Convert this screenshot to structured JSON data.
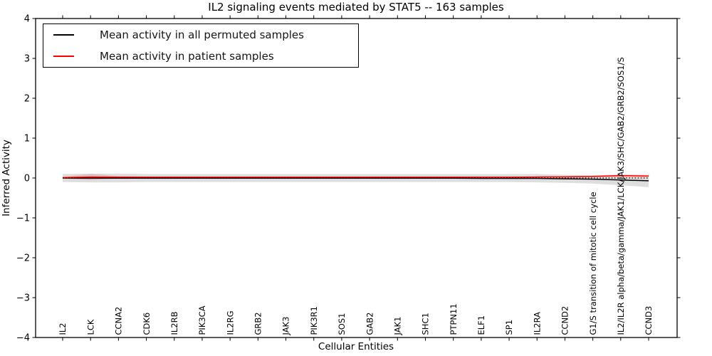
{
  "figure": {
    "title": "IL2 signaling events mediated by STAT5 -- 163 samples"
  },
  "legend": {
    "items": [
      {
        "label": "Mean activity in all permuted samples",
        "color": "#000000"
      },
      {
        "label": "Mean activity in patient samples",
        "color": "#ff0000"
      }
    ]
  },
  "chart_data": {
    "type": "line",
    "title": "IL2 signaling events mediated by STAT5 -- 163 samples",
    "xlabel": "Cellular Entities",
    "ylabel": "Inferred Activity",
    "ylim": [
      -4,
      4
    ],
    "ytick_values": [
      4,
      3,
      2,
      1,
      0,
      -1,
      -2,
      -3,
      -4
    ],
    "ytick_labels": [
      "4",
      "3",
      "2",
      "1",
      "0",
      "−1",
      "−2",
      "−3",
      "−4"
    ],
    "grid": false,
    "legend_position": "upper-left",
    "x_tick_rotation": 90,
    "categories": [
      "IL2",
      "LCK",
      "CCNA2",
      "CDK6",
      "IL2RB",
      "PIK3CA",
      "IL2RG",
      "GRB2",
      "JAK3",
      "PIK3R1",
      "SOS1",
      "GAB2",
      "JAK1",
      "SHC1",
      "PTPN11",
      "ELF1",
      "SP1",
      "IL2RA",
      "CCND2",
      "G1/S transition of mitotic cell cycle",
      "IL2/IL2R alpha/beta/gamma/JAK1/LCK/JAK3/SHC/GAB2/GRB2/SOS1/S",
      "CCND3"
    ],
    "series": [
      {
        "name": "Mean activity in all permuted samples",
        "color": "#000000",
        "values": [
          0.0,
          -0.005,
          -0.005,
          -0.005,
          -0.005,
          -0.005,
          -0.005,
          -0.005,
          -0.005,
          -0.005,
          -0.005,
          -0.005,
          -0.005,
          -0.005,
          -0.005,
          -0.01,
          -0.01,
          -0.01,
          -0.02,
          -0.03,
          -0.05,
          -0.07
        ]
      },
      {
        "name": "Mean activity in patient samples",
        "color": "#ff0000",
        "values": [
          0.01,
          0.025,
          0.02,
          0.02,
          0.02,
          0.02,
          0.02,
          0.02,
          0.02,
          0.02,
          0.02,
          0.02,
          0.02,
          0.02,
          0.02,
          0.02,
          0.02,
          0.025,
          0.03,
          0.04,
          0.06,
          0.05
        ]
      }
    ],
    "uncertainty_bands": [
      {
        "series": "Mean activity in all permuted samples",
        "color": "#bdbdbd",
        "opacity": 0.5,
        "upper": [
          0.1,
          0.11,
          0.11,
          0.1,
          0.1,
          0.1,
          0.1,
          0.1,
          0.1,
          0.1,
          0.1,
          0.1,
          0.1,
          0.1,
          0.1,
          0.1,
          0.1,
          0.1,
          0.08,
          0.06,
          0.04,
          0.02
        ],
        "lower": [
          -0.1,
          -0.11,
          -0.11,
          -0.1,
          -0.1,
          -0.1,
          -0.1,
          -0.1,
          -0.1,
          -0.1,
          -0.1,
          -0.1,
          -0.1,
          -0.1,
          -0.1,
          -0.1,
          -0.1,
          -0.11,
          -0.12,
          -0.14,
          -0.18,
          -0.23
        ]
      },
      {
        "series": "Mean activity in patient samples",
        "color": "#ff0000",
        "opacity": 0.16,
        "upper": [
          0.03,
          0.1,
          0.05,
          0.035,
          0.035,
          0.035,
          0.035,
          0.035,
          0.035,
          0.035,
          0.035,
          0.035,
          0.035,
          0.035,
          0.035,
          0.035,
          0.035,
          0.04,
          0.045,
          0.06,
          0.09,
          0.08
        ],
        "lower": [
          -0.01,
          -0.05,
          -0.01,
          0.005,
          0.005,
          0.005,
          0.005,
          0.005,
          0.005,
          0.005,
          0.005,
          0.005,
          0.005,
          0.005,
          0.005,
          0.005,
          0.005,
          0.01,
          0.015,
          0.02,
          0.03,
          0.01
        ]
      }
    ],
    "reference_line": {
      "y": 0,
      "style": "dotted",
      "color": "#000000"
    }
  }
}
